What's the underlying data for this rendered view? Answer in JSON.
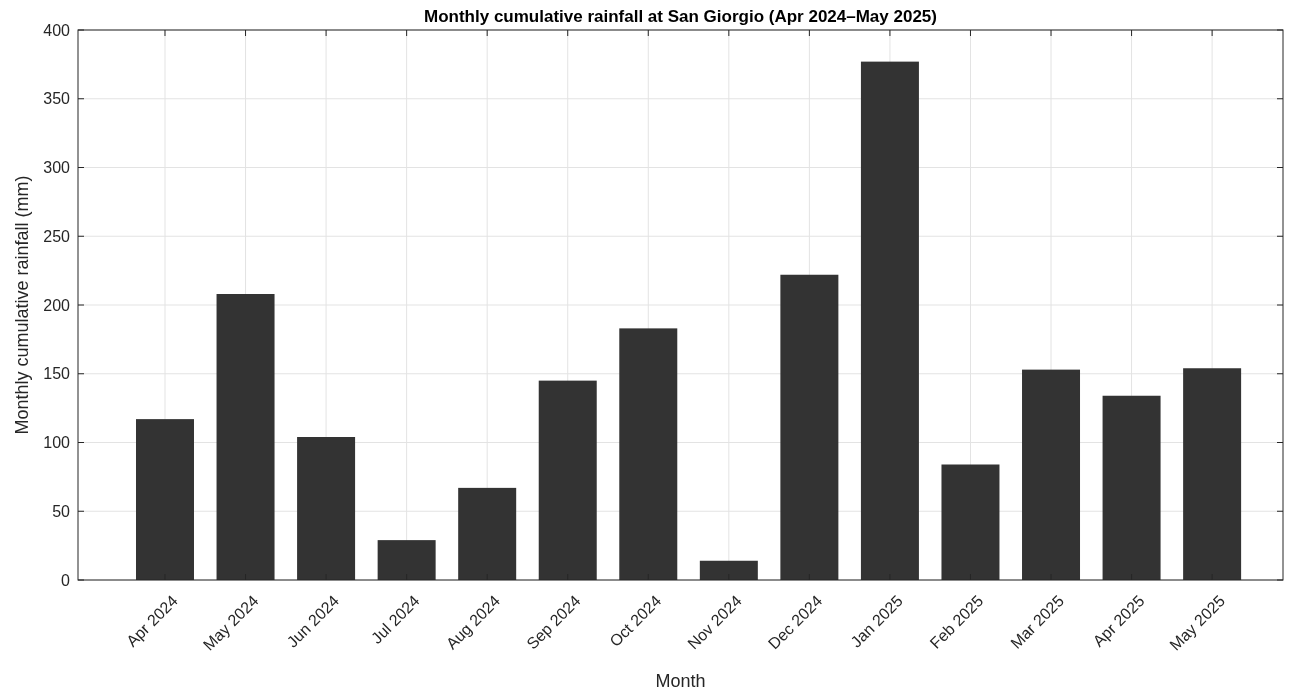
{
  "chart_data": {
    "type": "bar",
    "title": "Monthly cumulative rainfall at San Giorgio (Apr 2024–May 2025)",
    "xlabel": "Month",
    "ylabel": "Monthly cumulative rainfall (mm)",
    "categories": [
      "Apr 2024",
      "May 2024",
      "Jun 2024",
      "Jul 2024",
      "Aug 2024",
      "Sep 2024",
      "Oct 2024",
      "Nov 2024",
      "Dec 2024",
      "Jan 2025",
      "Feb 2025",
      "Mar 2025",
      "Apr 2025",
      "May 2025"
    ],
    "values": [
      117,
      208,
      104,
      29,
      67,
      145,
      183,
      14,
      222,
      377,
      84,
      153,
      134,
      154
    ],
    "color": "#333333",
    "ylim": [
      0,
      400
    ],
    "yticks": [
      0,
      50,
      100,
      150,
      200,
      250,
      300,
      350,
      400
    ],
    "grid": true
  }
}
